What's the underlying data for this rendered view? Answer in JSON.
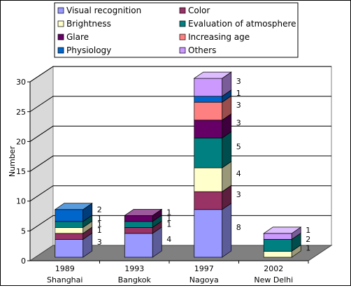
{
  "chart_data": {
    "type": "bar",
    "stacked": true,
    "three_d": true,
    "title": "",
    "ylabel": "Number",
    "xlabel": "",
    "ylim": [
      0,
      30
    ],
    "yticks": [
      0,
      5,
      10,
      15,
      20,
      25,
      30
    ],
    "grid": true,
    "legend_position": "top",
    "categories": [
      {
        "year": "1989",
        "city": "Shanghai"
      },
      {
        "year": "1993",
        "city": "Bangkok"
      },
      {
        "year": "1997",
        "city": "Nagoya"
      },
      {
        "year": "2002",
        "city": "New Delhi"
      }
    ],
    "series": [
      {
        "name": "Visual recognition",
        "color": "#9999ff",
        "values": [
          3,
          4,
          8,
          0
        ]
      },
      {
        "name": "Color",
        "color": "#993366",
        "values": [
          1,
          1,
          3,
          0
        ]
      },
      {
        "name": "Brightness",
        "color": "#ffffcc",
        "values": [
          1,
          0,
          4,
          1
        ]
      },
      {
        "name": "Evaluation of atmosphere",
        "color": "#008080",
        "values": [
          1,
          1,
          5,
          2
        ]
      },
      {
        "name": "Glare",
        "color": "#660066",
        "values": [
          0,
          1,
          3,
          0
        ]
      },
      {
        "name": "Increasing age",
        "color": "#ff8080",
        "values": [
          0,
          0,
          3,
          0
        ]
      },
      {
        "name": "Physiology",
        "color": "#0066cc",
        "values": [
          2,
          0,
          1,
          0
        ]
      },
      {
        "name": "Others",
        "color": "#cc99ff",
        "values": [
          0,
          0,
          3,
          1
        ]
      }
    ]
  }
}
